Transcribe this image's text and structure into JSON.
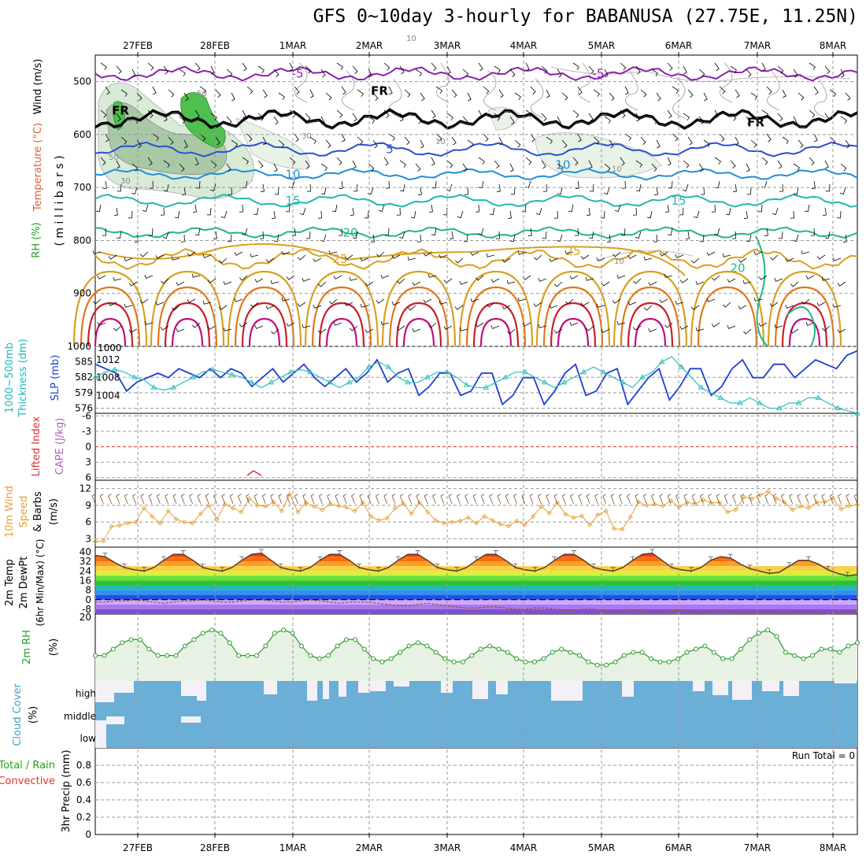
{
  "title": "GFS 0~10day 3-hourly for BABANUSA (27.75E, 11.25N)",
  "x_axis": {
    "dates": [
      "27FEB",
      "28FEB",
      "1MAR",
      "2MAR",
      "3MAR",
      "4MAR",
      "5MAR",
      "6MAR",
      "7MAR",
      "8MAR"
    ]
  },
  "panels": {
    "upper": {
      "labels": [
        "Wind (m/s)",
        "Temperature (°C)",
        "RH (%)",
        "( m i l l i b a r s )"
      ],
      "ylim": [
        1000,
        450
      ],
      "yticks": [
        500,
        600,
        700,
        800,
        900,
        "1000"
      ],
      "contours": [
        {
          "label": "-5",
          "color": "#8a1fb0",
          "level": 485
        },
        {
          "label": "FR",
          "color": "#000000",
          "level": 570
        },
        {
          "label": "5",
          "color": "#2850d0",
          "level": 628
        },
        {
          "label": "10",
          "color": "#1e8fd8",
          "level": 675
        },
        {
          "label": "15",
          "color": "#20b8b0",
          "level": 725
        },
        {
          "label": "20",
          "color": "#20b880",
          "level": 785
        },
        {
          "label": "25",
          "color": "#d8a020",
          "level": 835
        }
      ],
      "rh_labels": [
        "50",
        "30",
        "10"
      ]
    },
    "thickness_slp": {
      "labels": [
        "1000~500mb",
        "Thickness (dm)",
        "SLP (mb)"
      ],
      "left_ticks": [
        585,
        582,
        579,
        576
      ],
      "right_ticks": [
        1012,
        1008,
        1004
      ],
      "slp": [
        1011,
        1010,
        1009,
        1005,
        1007,
        1008,
        1009,
        1008,
        1010,
        1009,
        1008,
        1010,
        1008,
        1010,
        1009,
        1006,
        1008,
        1010,
        1007,
        1009,
        1011,
        1008,
        1006,
        1008,
        1010,
        1007,
        1009,
        1012,
        1007,
        1009,
        1010,
        1004,
        1006,
        1009,
        1009,
        1004,
        1005,
        1009,
        1009,
        1002,
        1004,
        1008,
        1008,
        1002,
        1005,
        1009,
        1011,
        1004,
        1005,
        1009,
        1010,
        1002,
        1005,
        1008,
        1010,
        1003,
        1006,
        1010,
        1010,
        1004,
        1006,
        1010,
        1012,
        1008,
        1008,
        1011,
        1011,
        1008,
        1010,
        1012,
        1011,
        1010,
        1013,
        1014
      ],
      "thickness": [
        582,
        583,
        583.5,
        583,
        582,
        581.5,
        580,
        579.5,
        580,
        581,
        582,
        583,
        583.5,
        583,
        582.5,
        582,
        581,
        580,
        581,
        582,
        583,
        583.5,
        583,
        582,
        581,
        580,
        581,
        582,
        584,
        585,
        584,
        582,
        581,
        581,
        582,
        583,
        583,
        582,
        580.5,
        580,
        580,
        581,
        582,
        583,
        583,
        582,
        581,
        580,
        581,
        582,
        583,
        584,
        583,
        582,
        581,
        580,
        582,
        583,
        585,
        586,
        584,
        582,
        580,
        579,
        578,
        577,
        577,
        578,
        577,
        576,
        576,
        577,
        577,
        578,
        578,
        577,
        576,
        575.5,
        575
      ],
      "thickness_tick_low": "576"
    },
    "instability": {
      "labels": [
        "Lifted Index",
        "CAPE (J/kg)"
      ],
      "yticks": [
        "-6",
        "-3",
        "0",
        "3",
        "6"
      ]
    },
    "wind10m": {
      "labels": [
        "10m Wind",
        "Speed",
        "& Barbs",
        "(m/s)"
      ],
      "yticks": [
        12,
        9,
        6,
        3
      ],
      "speed": [
        2.5,
        2.6,
        5.2,
        5.4,
        5.8,
        6,
        8.5,
        7,
        5.8,
        8,
        6.5,
        6,
        5.8,
        7.5,
        9,
        6.5,
        9.2,
        8.5,
        7.8,
        10.2,
        9,
        8.8,
        9.6,
        8,
        11,
        7.8,
        9.5,
        8.8,
        8.2,
        9.2,
        8.9,
        8.6,
        8,
        9.5,
        7,
        6.3,
        6.7,
        8.5,
        9.3,
        7.5,
        9.5,
        7.8,
        6.3,
        5.8,
        6,
        6.2,
        6.8,
        5.8,
        7,
        6.3,
        5.6,
        5.3,
        6.2,
        5.5,
        7,
        8.8,
        7.6,
        9.5,
        7.4,
        6.8,
        7.1,
        5.5,
        7.3,
        8,
        4.8,
        4.7,
        6.9,
        9.6,
        9,
        9.2,
        8.9,
        9.8,
        8.7,
        9.5,
        9.3,
        10,
        9.4,
        9.5,
        7.8,
        8.2,
        10.5,
        10.2,
        10.8,
        11.5,
        10.2,
        9.6,
        8.2,
        8.8,
        8.5,
        9.5,
        9.6,
        10.3,
        8.3,
        8.9,
        9.1
      ]
    },
    "temp2m": {
      "labels": [
        "2m Temp",
        "2m DewPt",
        "(6hr Min/Max) (°C)"
      ],
      "yticks": [
        "40",
        "32",
        "24",
        "16",
        "8",
        "0",
        "-8"
      ],
      "temp": [
        37,
        36,
        31,
        27,
        25,
        24,
        27,
        33,
        38,
        38,
        33,
        27,
        25,
        24,
        27,
        33,
        38,
        39,
        33,
        27,
        25,
        24,
        27,
        33,
        38,
        38,
        33,
        27,
        25,
        24,
        27,
        33,
        38,
        38,
        33,
        27,
        25,
        24,
        27,
        33,
        38,
        38,
        33,
        27,
        25,
        24,
        27,
        33,
        38,
        38,
        33,
        27,
        25,
        24,
        27,
        33,
        38,
        39,
        33,
        27,
        25,
        24,
        27,
        33,
        36,
        35,
        30,
        26,
        24,
        22,
        23,
        28,
        33,
        33,
        30,
        25,
        22,
        20,
        21
      ],
      "dewpt": [
        -2,
        -2,
        -1,
        -1,
        0,
        -1,
        -2,
        -3,
        -2,
        -1,
        -1,
        0,
        -1,
        -2,
        -2,
        -1,
        0,
        0,
        -1,
        -2,
        -2,
        -1,
        0,
        -1,
        -2,
        -3,
        -2,
        -2,
        -2,
        -3,
        -4,
        -5,
        -5,
        -4,
        -3,
        -4,
        -5,
        -6,
        -7,
        -7,
        -6,
        -6,
        -7,
        -8,
        -8,
        -7,
        -7,
        -8,
        -9,
        -9,
        -8,
        -8,
        -9,
        -10,
        -10,
        -9,
        -9,
        -10,
        -10,
        -9,
        -9,
        -10,
        -11,
        -10,
        -9,
        -10,
        -11,
        -11,
        -10,
        -10,
        -11,
        -11,
        -10,
        -10,
        -11,
        -12,
        -11,
        -10,
        -9
      ]
    },
    "rh2m": {
      "labels": [
        "2m RH",
        "(%)"
      ],
      "yticks": [
        "20"
      ],
      "rh": [
        8,
        8,
        10,
        12,
        13,
        13,
        10,
        8,
        8,
        8,
        11,
        13,
        15,
        16,
        15,
        12,
        8,
        8,
        8,
        11,
        15,
        16,
        15,
        11,
        8,
        7,
        8,
        11,
        13,
        13,
        10,
        7,
        6,
        7,
        9,
        11,
        12,
        11,
        9,
        7,
        6,
        6,
        8,
        10,
        11,
        10,
        9,
        7,
        6,
        6,
        7,
        9,
        10,
        9,
        8,
        6,
        5,
        5,
        6,
        8,
        9,
        9,
        7,
        6,
        6,
        7,
        9,
        10,
        11,
        9,
        7,
        7,
        10,
        13,
        15,
        16,
        14,
        9,
        8,
        7,
        8,
        10,
        10,
        9,
        11,
        12
      ]
    },
    "cloud": {
      "labels": [
        "Cloud Cover",
        "(%)"
      ],
      "levels": [
        "high",
        "middle",
        "low"
      ]
    },
    "precip": {
      "labels": [
        "Total / Rain",
        "Convective",
        "3hr Precip (mm)"
      ],
      "yticks": [
        "0.8",
        "0.6",
        "0.4",
        "0.2",
        "0"
      ],
      "run_total": "Run Total = 0",
      "ylim": [
        0,
        1
      ]
    }
  },
  "chart_data": {
    "type": "line",
    "title": "GFS 0~10day 3-hourly for BABANUSA (27.75E, 11.25N)",
    "xlabel": "",
    "categories": [
      "27FEB",
      "28FEB",
      "1MAR",
      "2MAR",
      "3MAR",
      "4MAR",
      "5MAR",
      "6MAR",
      "7MAR",
      "8MAR"
    ],
    "series": [
      {
        "name": "SLP (mb)",
        "values": "panels.thickness_slp.slp"
      },
      {
        "name": "1000~500mb Thickness (dm)",
        "values": "panels.thickness_slp.thickness"
      },
      {
        "name": "10m Wind Speed (m/s)",
        "values": "panels.wind10m.speed"
      },
      {
        "name": "2m Temp (°C)",
        "values": "panels.temp2m.temp"
      },
      {
        "name": "2m DewPt (°C)",
        "values": "panels.temp2m.dewpt"
      },
      {
        "name": "2m RH (%)",
        "values": "panels.rh2m.rh"
      }
    ],
    "precip_run_total": 0
  }
}
